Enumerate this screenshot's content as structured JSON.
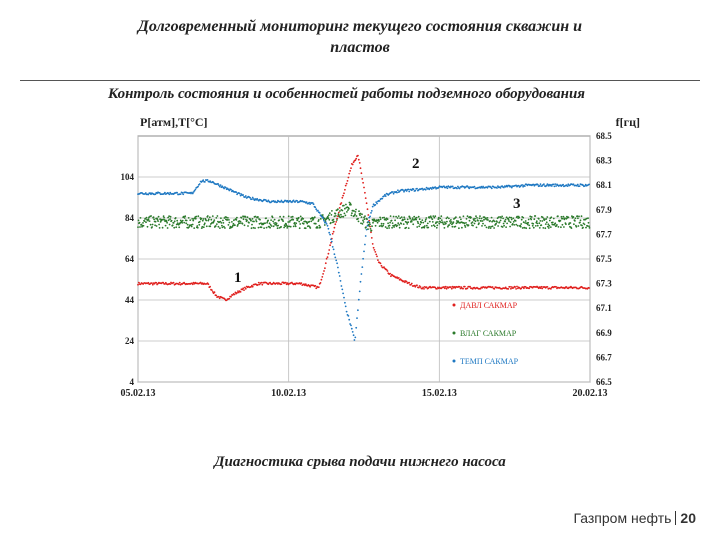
{
  "slide": {
    "title_line1": "Долговременный мониторинг текущего состояния скважин и",
    "title_line2": "пластов",
    "subtitle": "Контроль состояния и особенностей работы подземного оборудования",
    "caption": "Диагностика срыва подачи нижнего насоса",
    "footer_brand": "Газпром нефть",
    "footer_page": "20"
  },
  "chart_data": {
    "type": "scatter",
    "title": "",
    "ylabel_left": "P[атм],T[°C]",
    "ylabel_right": "f[гц]",
    "x_ticks": [
      "05.02.13",
      "10.02.13",
      "15.02.13",
      "20.02.13"
    ],
    "xlim_days": [
      0,
      15
    ],
    "y_left_ticks": [
      4,
      24,
      44,
      64,
      84,
      104
    ],
    "ylim_left": [
      4,
      124
    ],
    "y_right_ticks": [
      66.5,
      66.7,
      66.9,
      67.1,
      67.3,
      67.5,
      67.7,
      67.9,
      68.1,
      68.3,
      68.5
    ],
    "ylim_right": [
      66.5,
      68.5
    ],
    "grid": true,
    "legend_position": "bottom-right",
    "annotations": [
      "1",
      "2",
      "3"
    ],
    "series": [
      {
        "name": "ДАВЛ САКМАР",
        "color": "#e0201e",
        "axis": "left",
        "points": [
          [
            0,
            52
          ],
          [
            1,
            52
          ],
          [
            2,
            52
          ],
          [
            2.3,
            52
          ],
          [
            2.6,
            46
          ],
          [
            2.9,
            44
          ],
          [
            3.2,
            47
          ],
          [
            3.6,
            50
          ],
          [
            4,
            52
          ],
          [
            5,
            52
          ],
          [
            5.4,
            52
          ],
          [
            5.7,
            51
          ],
          [
            6.0,
            50
          ],
          [
            6.2,
            60
          ],
          [
            6.5,
            78
          ],
          [
            6.9,
            100
          ],
          [
            7.1,
            110
          ],
          [
            7.3,
            115
          ],
          [
            7.6,
            90
          ],
          [
            7.8,
            70
          ],
          [
            8,
            62
          ],
          [
            8.4,
            56
          ],
          [
            9,
            52
          ],
          [
            9.4,
            50
          ],
          [
            10,
            50
          ],
          [
            11,
            50
          ],
          [
            12,
            50
          ],
          [
            13,
            50
          ],
          [
            14,
            50
          ],
          [
            15,
            50
          ]
        ]
      },
      {
        "name": "ВЛАГ САКМАР",
        "color": "#2b7a2b",
        "axis": "left",
        "points": [
          [
            0,
            82
          ],
          [
            1,
            82
          ],
          [
            2,
            82
          ],
          [
            3,
            82
          ],
          [
            4,
            82
          ],
          [
            5,
            82
          ],
          [
            6,
            82
          ],
          [
            6.5,
            85
          ],
          [
            7.0,
            89
          ],
          [
            7.4,
            84
          ],
          [
            7.7,
            80
          ],
          [
            8,
            82
          ],
          [
            9,
            82
          ],
          [
            10,
            82
          ],
          [
            11,
            82
          ],
          [
            12,
            82
          ],
          [
            13,
            82
          ],
          [
            14,
            82
          ],
          [
            15,
            82
          ]
        ]
      },
      {
        "name": "ТЕМП САКМАР",
        "color": "#1e78c2",
        "axis": "left",
        "points": [
          [
            0,
            96
          ],
          [
            1,
            96
          ],
          [
            1.8,
            96
          ],
          [
            2.1,
            102
          ],
          [
            2.4,
            102
          ],
          [
            3,
            98
          ],
          [
            3.6,
            94
          ],
          [
            4.4,
            92
          ],
          [
            5.4,
            92
          ],
          [
            5.8,
            91
          ],
          [
            6.3,
            80
          ],
          [
            6.6,
            62
          ],
          [
            6.9,
            40
          ],
          [
            7.2,
            24
          ],
          [
            7.4,
            55
          ],
          [
            7.6,
            80
          ],
          [
            7.8,
            90
          ],
          [
            8.2,
            95
          ],
          [
            8.6,
            97
          ],
          [
            9.4,
            98
          ],
          [
            10,
            99
          ],
          [
            11,
            99
          ],
          [
            12,
            99
          ],
          [
            13,
            100
          ],
          [
            14,
            100
          ],
          [
            15,
            100
          ]
        ]
      }
    ]
  }
}
